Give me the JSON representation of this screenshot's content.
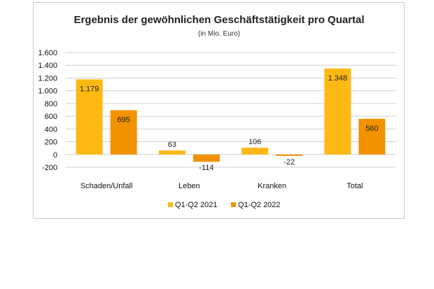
{
  "chart_data": {
    "type": "bar",
    "title": "Ergebnis der gewöhnlichen Geschäftstätigkeit pro Quartal",
    "subtitle": "(in Mio. Euro)",
    "categories": [
      "Schaden/Unfall",
      "Leben",
      "Kranken",
      "Total"
    ],
    "series": [
      {
        "name": "Q1-Q2 2021",
        "values": [
          1179,
          63,
          106,
          1348
        ],
        "labels": [
          "1.179",
          "63",
          "106",
          "1.348"
        ],
        "color": "#FDB913"
      },
      {
        "name": "Q1-Q2 2022",
        "values": [
          695,
          -114,
          -22,
          560
        ],
        "labels": [
          "695",
          "-114",
          "-22",
          "560"
        ],
        "color": "#F39200"
      }
    ],
    "ylim": [
      -200,
      1600
    ],
    "yticks": [
      -200,
      0,
      200,
      400,
      600,
      800,
      1000,
      1200,
      1400,
      1600
    ],
    "ytick_labels": [
      "-200",
      "0",
      "200",
      "400",
      "600",
      "800",
      "1.000",
      "1.200",
      "1.400",
      "1.600"
    ],
    "grid": true,
    "legend_position": "bottom"
  }
}
